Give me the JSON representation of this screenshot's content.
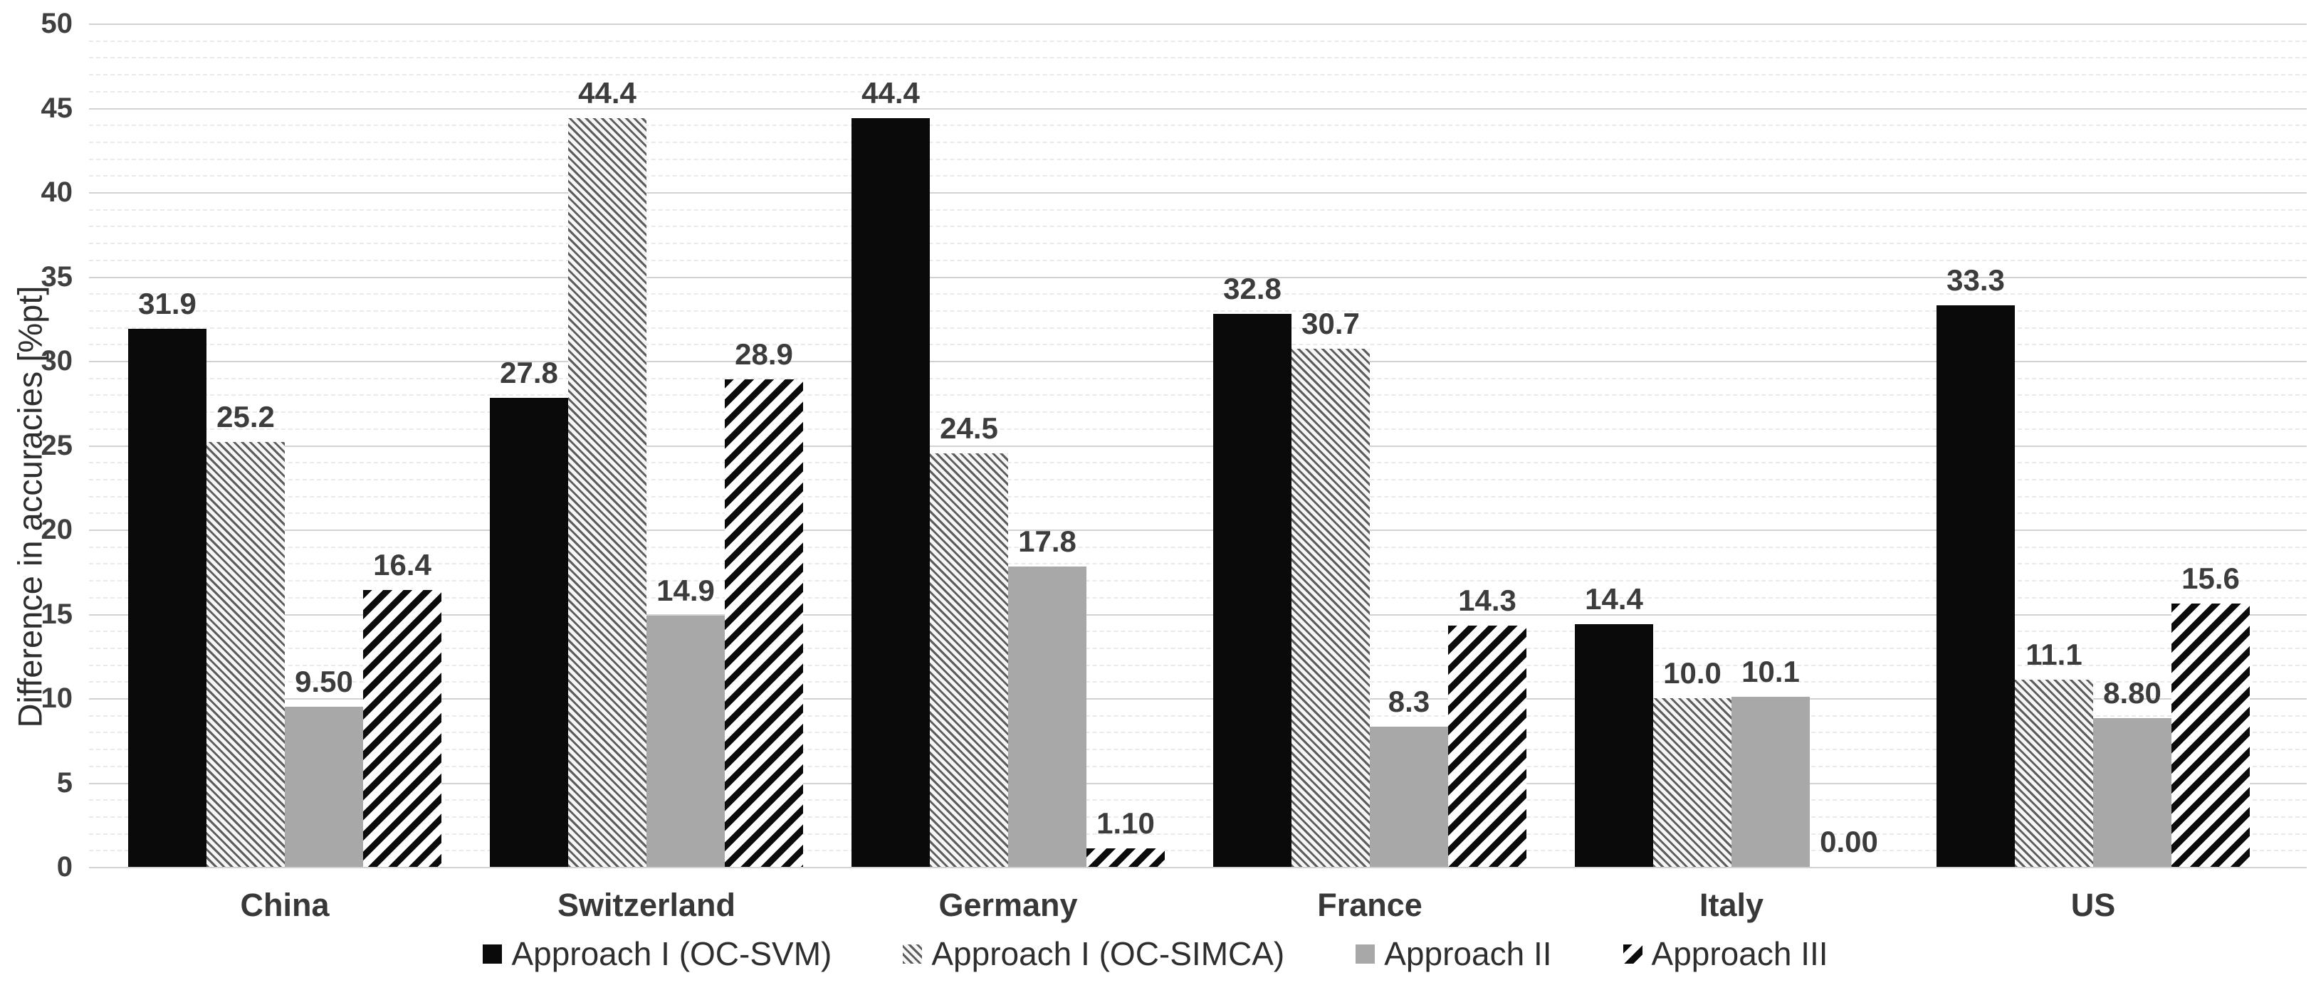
{
  "chart_data": {
    "type": "bar",
    "title": "",
    "ylabel": "Difference in accuracies [%pt]",
    "xlabel": "",
    "ylim": [
      0,
      50
    ],
    "y_tick_step": 5,
    "y_minor_grid_step": 1,
    "grid": true,
    "legend_position": "bottom-center",
    "categories": [
      "China",
      "Switzerland",
      "Germany",
      "France",
      "Italy",
      "US"
    ],
    "series": [
      {
        "name": "Approach I (OC-SVM)",
        "pattern": "solid-black",
        "values": [
          31.9,
          27.8,
          44.4,
          32.8,
          14.4,
          33.3
        ],
        "labels": [
          "31.9",
          "27.8",
          "44.4",
          "32.8",
          "14.4",
          "33.3"
        ]
      },
      {
        "name": "Approach I (OC-SIMCA)",
        "pattern": "thin-diagonal-hatch",
        "values": [
          25.2,
          44.4,
          24.5,
          30.7,
          10.0,
          11.1
        ],
        "labels": [
          "25.2",
          "44.4",
          "24.5",
          "30.7",
          "10.0",
          "11.1"
        ]
      },
      {
        "name": "Approach II",
        "pattern": "solid-gray",
        "values": [
          9.5,
          14.9,
          17.8,
          8.3,
          10.1,
          8.8
        ],
        "labels": [
          "9.50",
          "14.9",
          "17.8",
          "8.3",
          "10.1",
          "8.80"
        ]
      },
      {
        "name": "Approach III",
        "pattern": "bold-diagonal-hatch",
        "values": [
          16.4,
          28.9,
          1.1,
          14.3,
          0.0,
          15.6
        ],
        "labels": [
          "16.4",
          "28.9",
          "1.10",
          "14.3",
          "0.00",
          "15.6"
        ]
      }
    ],
    "colors": {
      "bar_black": "#0a0a0a",
      "bar_gray": "#a8a8a8",
      "hatch_thin_line": "#5d5d5d",
      "hatch_thin_bg": "#f6f6f6",
      "hatch_bold_line": "#0b0b0b",
      "hatch_bold_bg": "#ffffff",
      "grid_major": "#d2d2d2",
      "grid_minor": "#eaeaea",
      "text": "#3c3c3c"
    }
  }
}
